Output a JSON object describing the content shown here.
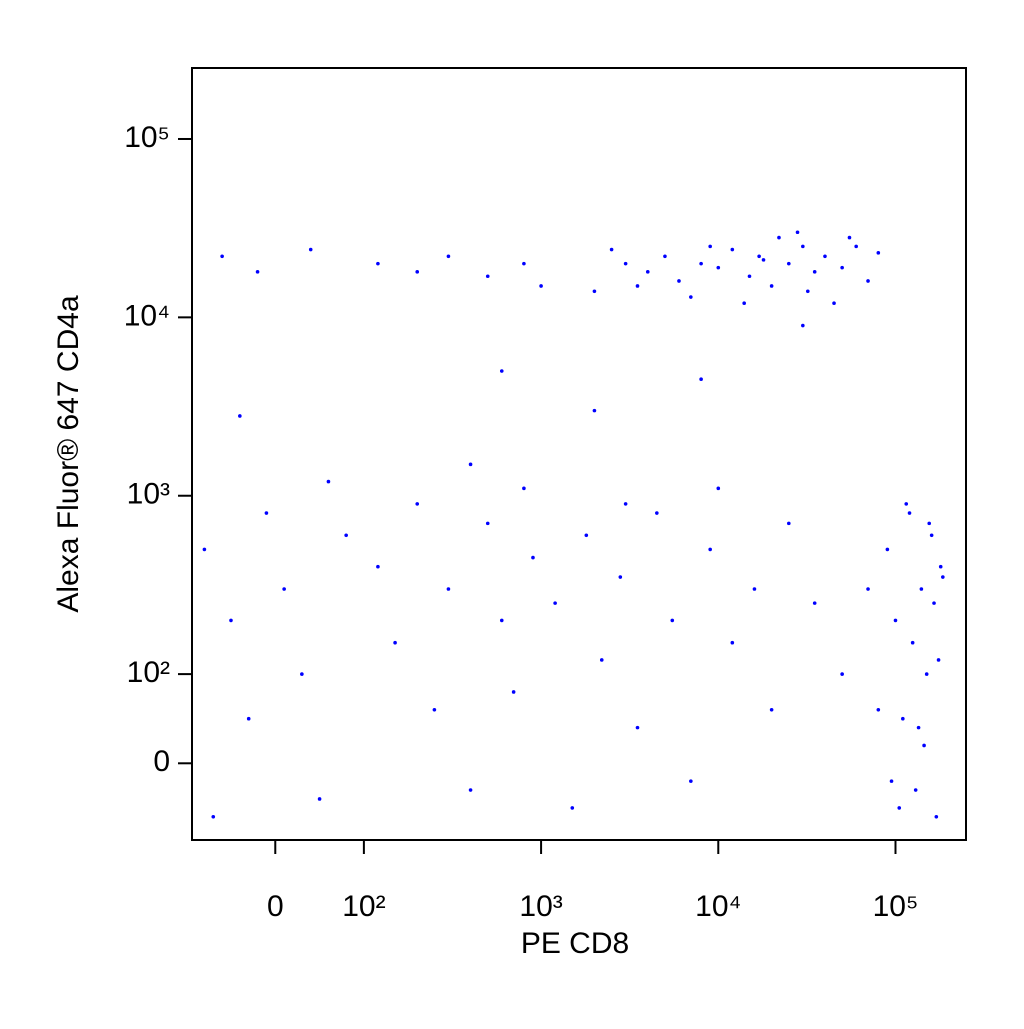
{
  "chart_data": {
    "type": "scatter",
    "x_label": "PE CD8",
    "y_label": "Alexa Fluor® 647 CD4a",
    "xscale": "biexponential",
    "yscale": "biexponential",
    "color": "#0000ff",
    "xlim": [
      -94,
      250000
    ],
    "ylim": [
      -86,
      250000
    ],
    "xticks": [
      0,
      {
        "value": 100,
        "label": "10²"
      },
      {
        "value": 1000,
        "label": "10³"
      },
      {
        "value": 10000,
        "label": "10⁴"
      },
      {
        "value": 100000,
        "label": "10⁵"
      }
    ],
    "yticks": [
      0,
      {
        "value": 100,
        "label": "10²"
      },
      {
        "value": 1000,
        "label": "10³"
      },
      {
        "value": 10000,
        "label": "10⁴"
      },
      {
        "value": 100000,
        "label": "10⁵"
      }
    ],
    "x": [
      3000,
      4000,
      5000,
      6000,
      8000,
      10000,
      12000,
      15000,
      18000,
      20000,
      25000,
      30000,
      35000,
      40000,
      50000,
      60000,
      70000,
      80000,
      2000,
      2500,
      7000,
      14000,
      28000,
      45000,
      22000,
      9000,
      3500,
      17000,
      32000,
      55000,
      120,
      200,
      300,
      500,
      800,
      1000,
      -60,
      -20,
      40,
      600,
      2000,
      -40,
      8000,
      30000,
      -80,
      -50,
      -30,
      -10,
      10,
      30,
      50,
      80,
      120,
      150,
      200,
      250,
      300,
      400,
      500,
      600,
      700,
      900,
      1200,
      1500,
      1800,
      2200,
      2800,
      3500,
      4500,
      5500,
      7000,
      9000,
      12000,
      16000,
      20000,
      25000,
      35000,
      50000,
      -70,
      60,
      400,
      800,
      3000,
      10000,
      90000,
      100000,
      110000,
      120000,
      130000,
      140000,
      150000,
      160000,
      170000,
      180000,
      105000,
      125000,
      145000,
      165000,
      115000,
      135000,
      155000,
      175000,
      95000,
      185000,
      80000,
      70000
    ],
    "values": [
      20000,
      18000,
      22000,
      16000,
      20000,
      19000,
      24000,
      17000,
      21000,
      15000,
      20000,
      25000,
      18000,
      22000,
      19000,
      25000,
      16000,
      23000,
      14000,
      24000,
      13000,
      12000,
      30000,
      12000,
      28000,
      25000,
      15000,
      22000,
      14000,
      28000,
      20000,
      18000,
      22000,
      17000,
      20000,
      15000,
      22000,
      18000,
      24000,
      5000,
      3000,
      2800,
      4500,
      9000,
      500,
      200,
      50,
      800,
      300,
      100,
      -40,
      600,
      400,
      150,
      900,
      60,
      300,
      -30,
      700,
      200,
      80,
      450,
      250,
      -50,
      600,
      120,
      350,
      40,
      800,
      200,
      -20,
      500,
      150,
      300,
      60,
      700,
      250,
      100,
      -60,
      1200,
      1500,
      1100,
      900,
      1100,
      500,
      200,
      50,
      800,
      -30,
      300,
      100,
      600,
      -60,
      400,
      -50,
      150,
      20,
      250,
      900,
      40,
      700,
      120,
      -20,
      350,
      60,
      300
    ]
  }
}
